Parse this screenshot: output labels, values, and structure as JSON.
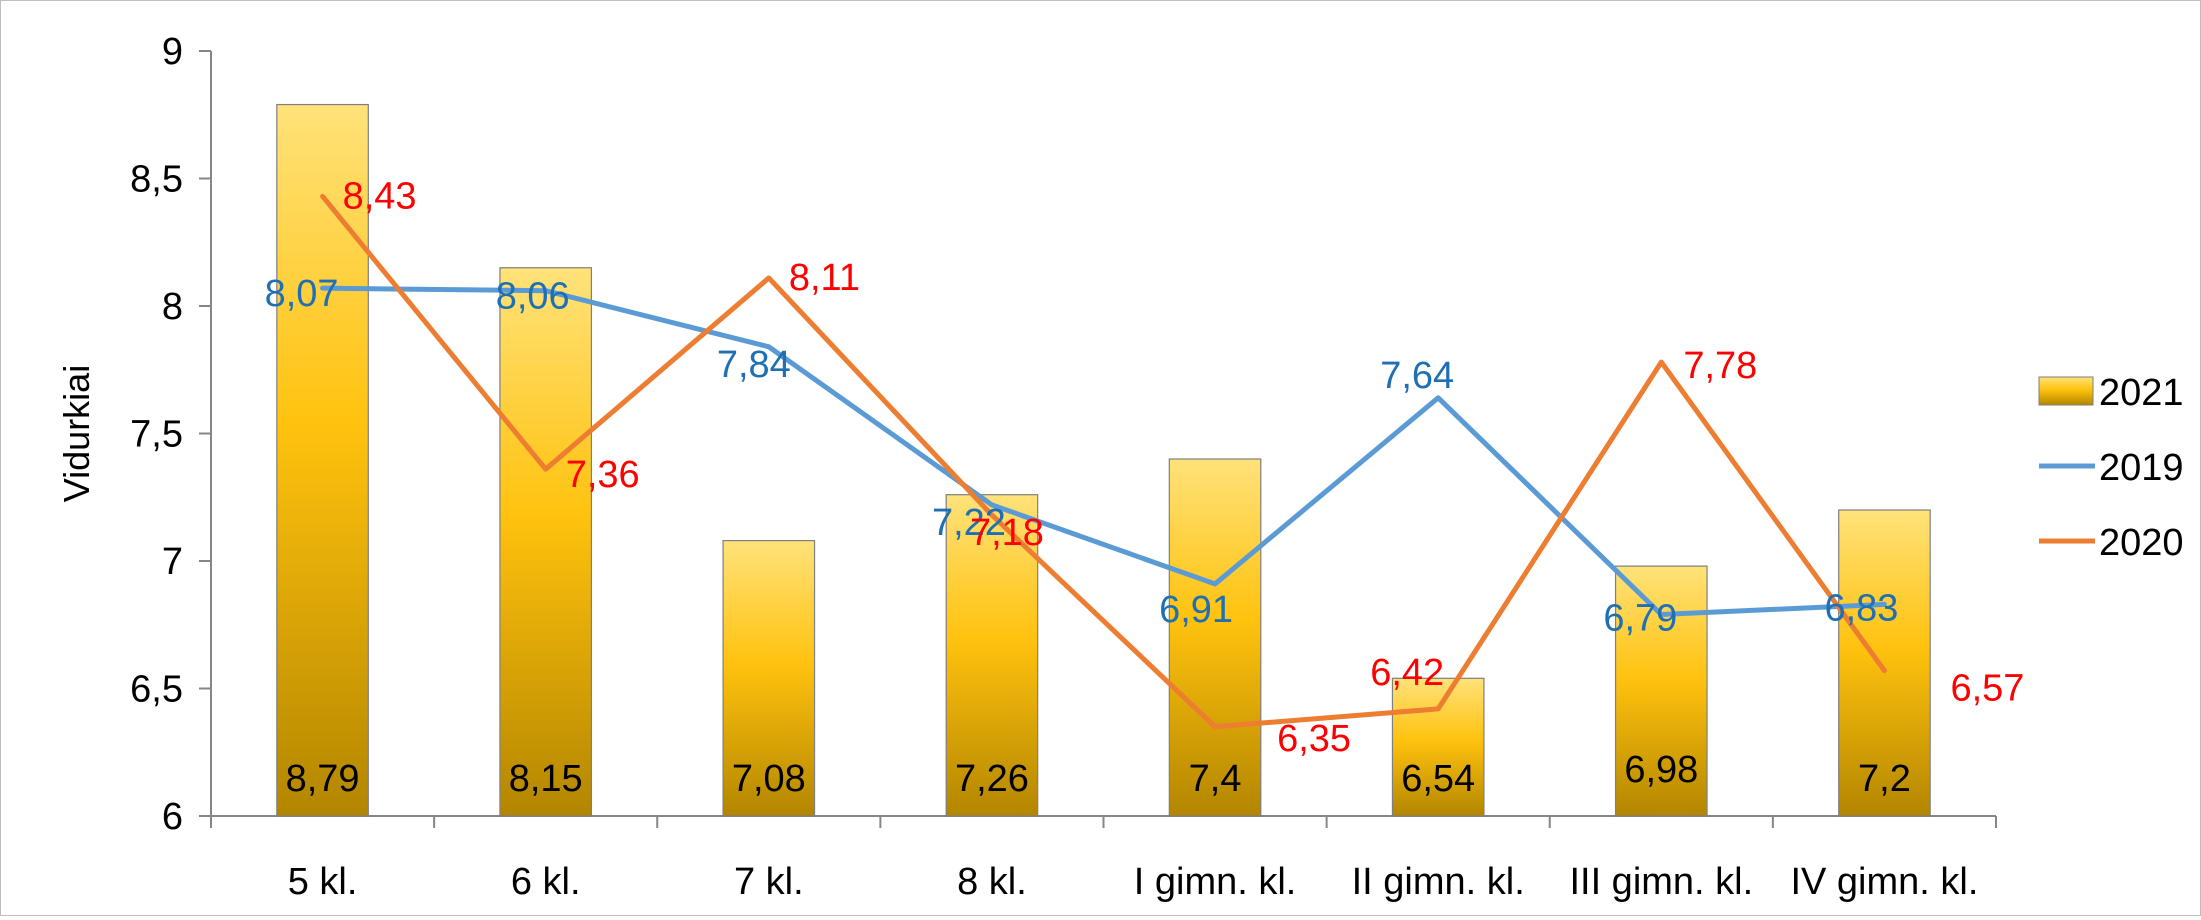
{
  "chart_data": {
    "type": "bar",
    "ylabel": "Vidurkiai",
    "ylim": [
      6,
      9
    ],
    "yticks": [
      "6",
      "6,5",
      "7",
      "7,5",
      "8",
      "8,5",
      "9"
    ],
    "ytick_values": [
      6,
      6.5,
      7,
      7.5,
      8,
      8.5,
      9
    ],
    "grid": false,
    "legend_position": "right",
    "categories": [
      "5 kl.",
      "6 kl.",
      "7 kl.",
      "8 kl.",
      "I gimn. kl.",
      "II gimn. kl.",
      "III gimn. kl.",
      "IV gimn. kl."
    ],
    "series": [
      {
        "name": "2021",
        "kind": "bar",
        "values": [
          8.79,
          8.15,
          7.08,
          7.26,
          7.4,
          6.54,
          6.98,
          7.2
        ],
        "labels": [
          "8,79",
          "8,15",
          "7,08",
          "7,26",
          "7,4",
          "6,54",
          "6,98",
          "7,2"
        ],
        "color_top": "#ffe27a",
        "color_mid": "#ffc20e",
        "color_bottom": "#b38600",
        "label_color": "#000000"
      },
      {
        "name": "2019",
        "kind": "line",
        "values": [
          8.07,
          8.06,
          7.84,
          7.22,
          6.91,
          7.64,
          6.79,
          6.83
        ],
        "labels": [
          "8,07",
          "8,06",
          "7,84",
          "7,22",
          "6,91",
          "7,64",
          "6,79",
          "6,83"
        ],
        "color": "#5b9bd5",
        "label_color": "#1f6fb5"
      },
      {
        "name": "2020",
        "kind": "line",
        "values": [
          8.43,
          7.36,
          8.11,
          7.18,
          6.35,
          6.42,
          7.78,
          6.57
        ],
        "labels": [
          "8,43",
          "7,36",
          "8,11",
          "7,18",
          "6,35",
          "6,42",
          "7,78",
          "6,57"
        ],
        "color": "#ed7d31",
        "label_color": "#ff0000"
      }
    ]
  }
}
